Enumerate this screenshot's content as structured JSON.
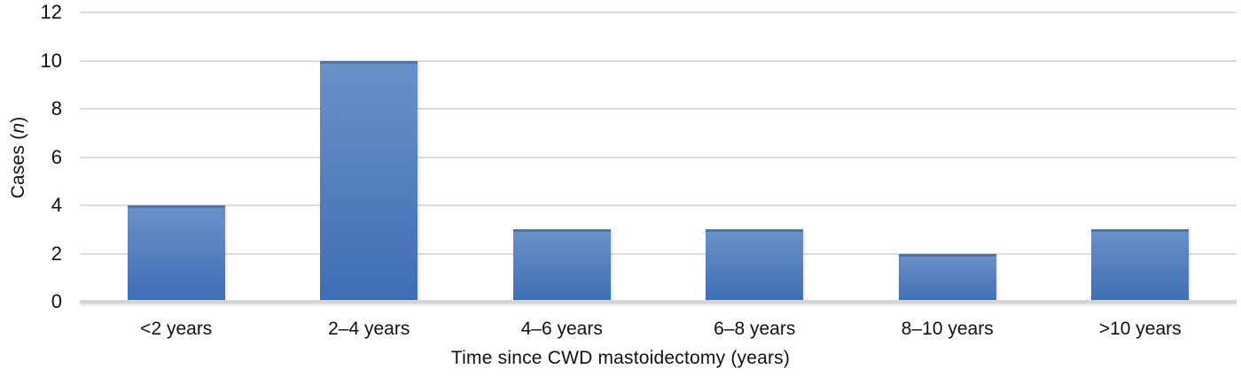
{
  "chart_data": {
    "type": "bar",
    "title": "",
    "categories": [
      "<2 years",
      "2–4 years",
      "4–6 years",
      "6–8 years",
      "8–10 years",
      ">10 years"
    ],
    "values": [
      4,
      10,
      3,
      3,
      2,
      3
    ],
    "xlabel": "Time since CWD mastoidectomy (years)",
    "ylabel": "Cases (n)",
    "ylabel_parts": {
      "prefix": "Cases (",
      "italic": "n",
      "suffix": ")"
    },
    "ylim": [
      0,
      12
    ],
    "yticks": [
      0,
      2,
      4,
      6,
      8,
      10,
      12
    ],
    "grid": "horizontal gridlines on",
    "legend_position": "none",
    "colors": {
      "bar_gradient_top": "#6a90c8",
      "bar_gradient_bottom": "#3f6eb4",
      "bar_top_edge": "#53749f",
      "gridline": "#dcdcdc",
      "axis_line": "#d4d4d4",
      "text": "#111111",
      "background": "#ffffff"
    }
  }
}
